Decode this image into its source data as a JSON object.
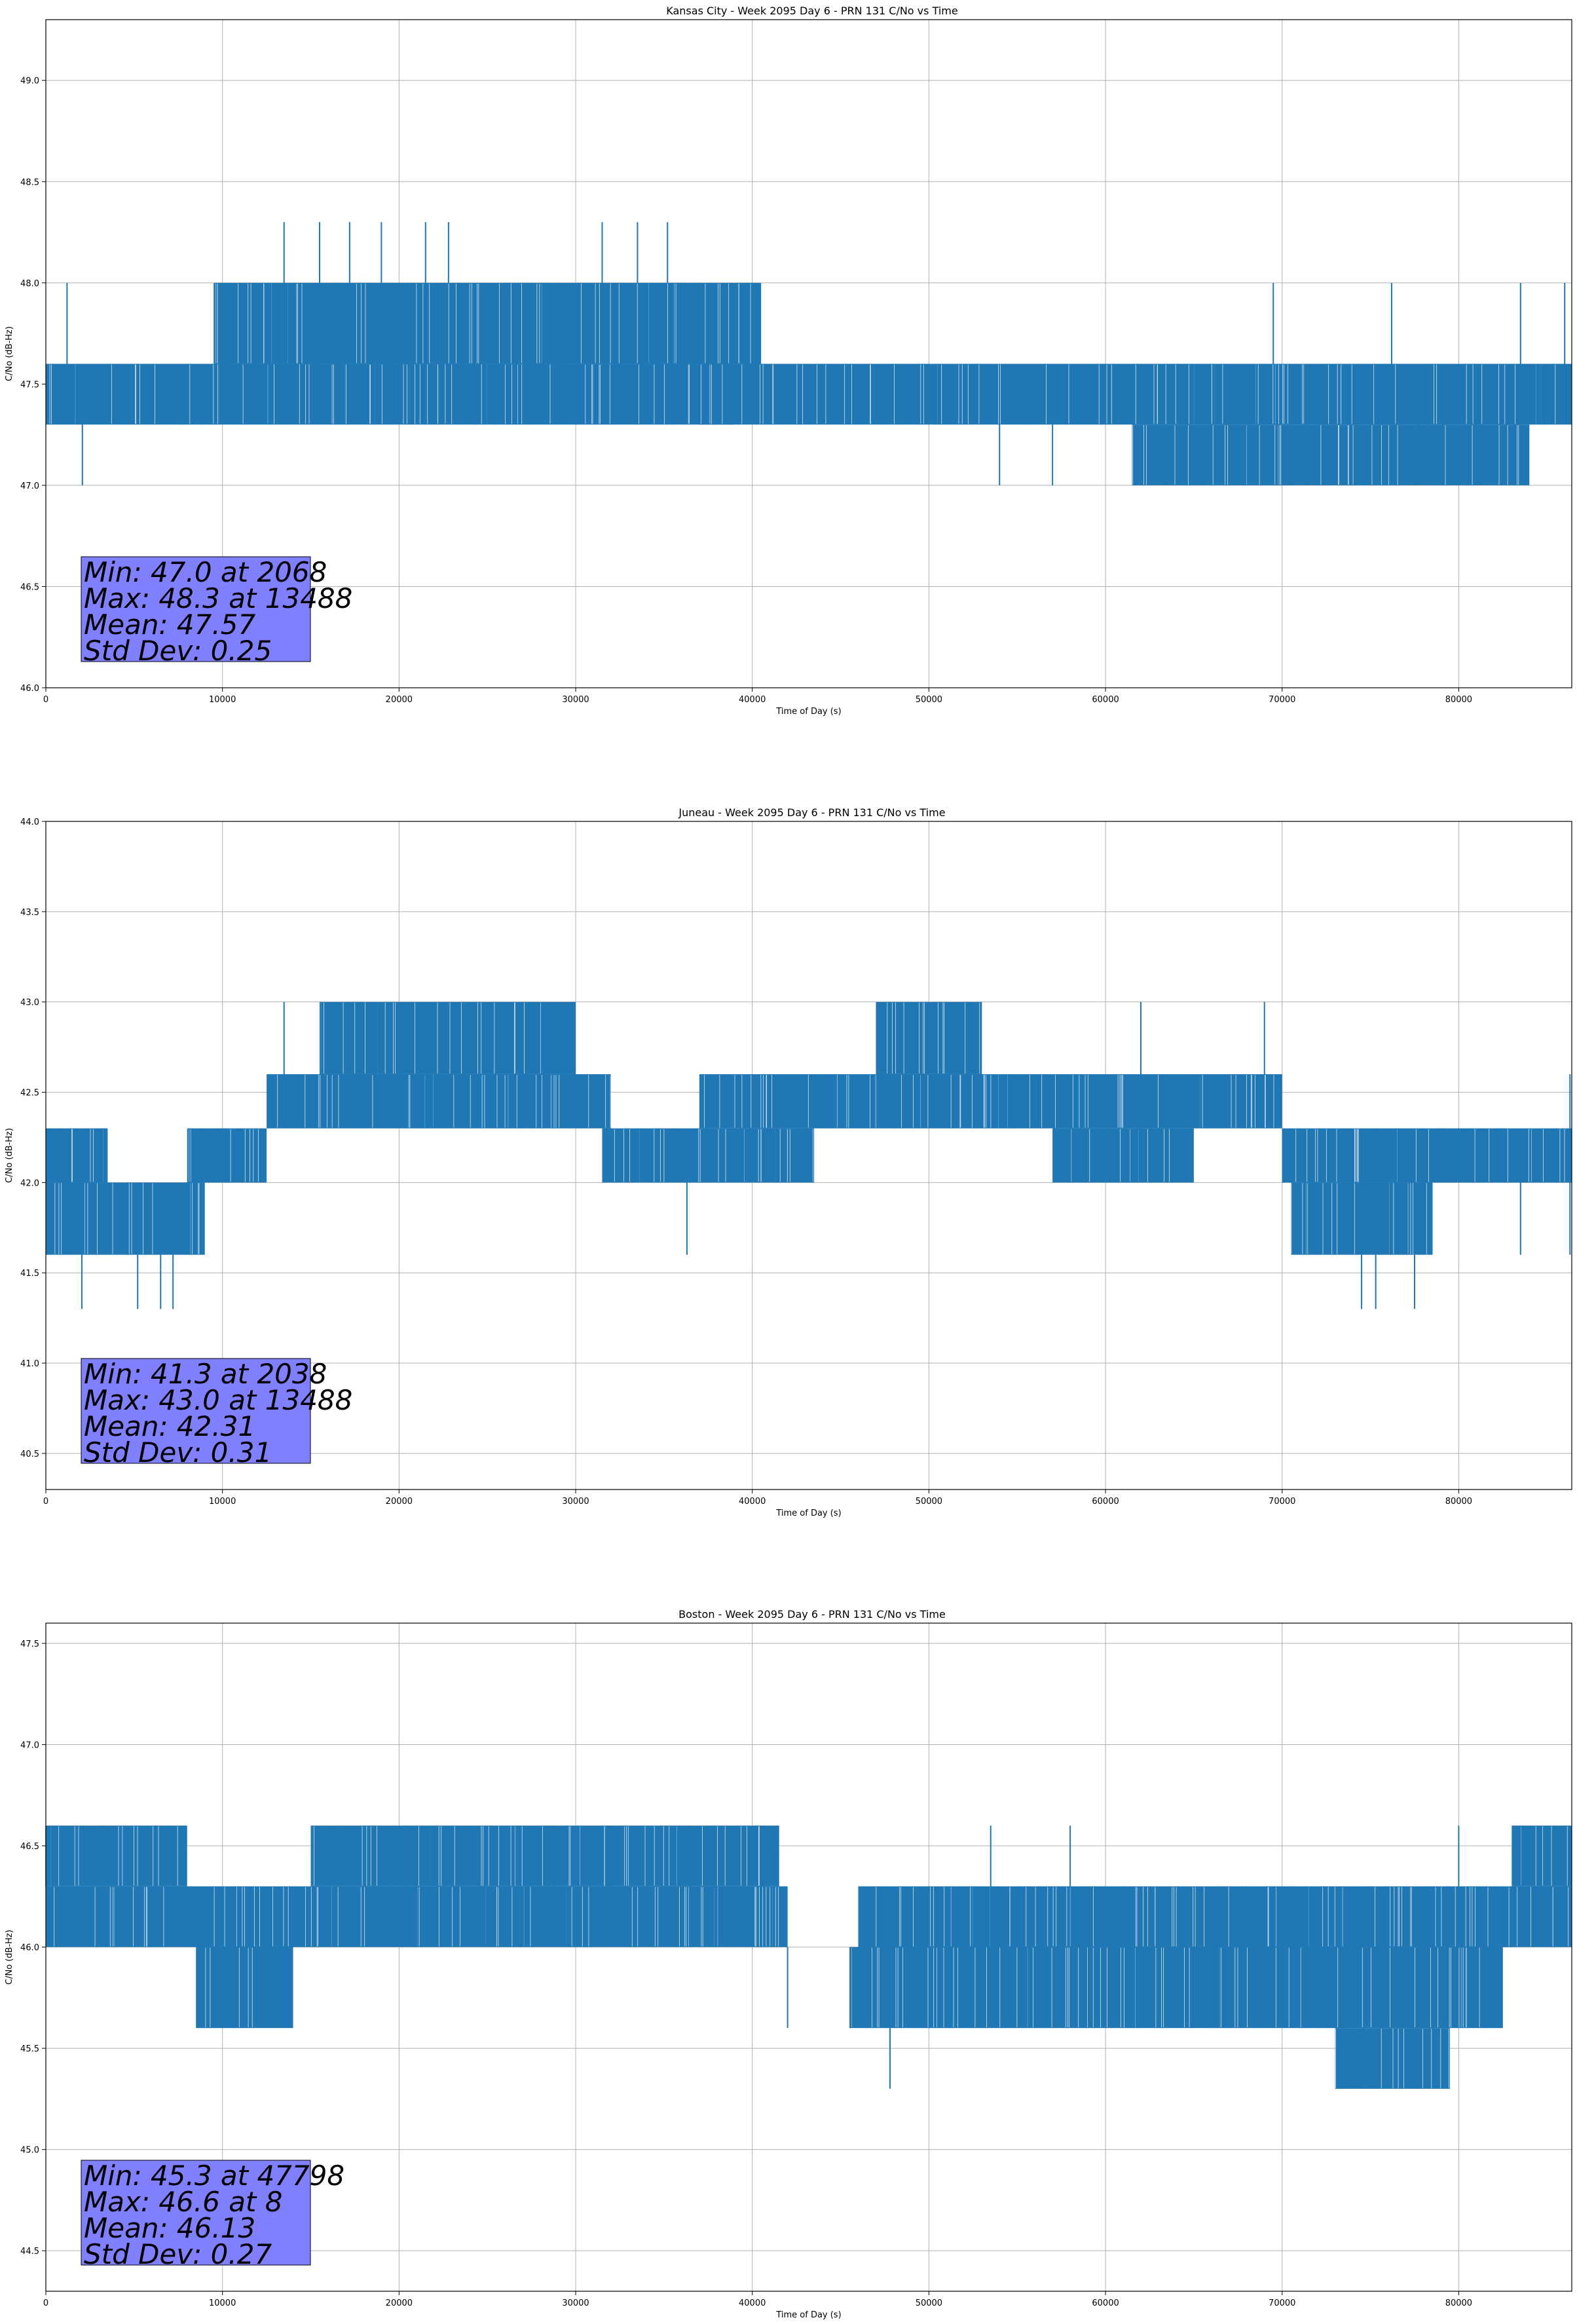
{
  "chart_data": [
    {
      "type": "line",
      "title": "Kansas City - Week 2095 Day 6 - PRN 131 C/No vs Time",
      "xlabel": "Time of Day (s)",
      "ylabel": "C/No (dB-Hz)",
      "xlim": [
        0,
        86400
      ],
      "ylim": [
        46.0,
        49.3
      ],
      "x_ticks": [
        0,
        10000,
        20000,
        30000,
        40000,
        50000,
        60000,
        70000,
        80000
      ],
      "x_tick_labels": [
        "0",
        "10000",
        "20000",
        "30000",
        "40000",
        "50000",
        "60000",
        "70000",
        "80000"
      ],
      "y_ticks": [
        46.0,
        46.5,
        47.0,
        47.5,
        48.0,
        48.5,
        49.0
      ],
      "y_tick_labels": [
        "46.0",
        "46.5",
        "47.0",
        "47.5",
        "48.0",
        "48.5",
        "49.0"
      ],
      "grid": true,
      "color": "#1f77b4",
      "series": [
        {
          "name": "C/No",
          "bands": [
            {
              "x": [
                0,
                39000
              ],
              "lo": 47.3,
              "hi": 47.6
            },
            {
              "x": [
                9500,
                40500
              ],
              "lo": 47.6,
              "hi": 48.0
            },
            {
              "x": [
                37000,
                86400
              ],
              "lo": 47.3,
              "hi": 47.6
            },
            {
              "x": [
                61500,
                84000
              ],
              "lo": 47.0,
              "hi": 47.3
            }
          ],
          "spikes": [
            {
              "x": 2068,
              "lo": 47.0,
              "hi": 47.3
            },
            {
              "x": 1200,
              "lo": 47.6,
              "hi": 48.0
            },
            {
              "x": 13488,
              "lo": 48.0,
              "hi": 48.3
            },
            {
              "x": 15500,
              "lo": 48.0,
              "hi": 48.3
            },
            {
              "x": 17200,
              "lo": 48.0,
              "hi": 48.3
            },
            {
              "x": 19000,
              "lo": 48.0,
              "hi": 48.3
            },
            {
              "x": 21500,
              "lo": 48.0,
              "hi": 48.3
            },
            {
              "x": 22800,
              "lo": 48.0,
              "hi": 48.3
            },
            {
              "x": 31500,
              "lo": 48.0,
              "hi": 48.3
            },
            {
              "x": 33500,
              "lo": 48.0,
              "hi": 48.3
            },
            {
              "x": 35200,
              "lo": 48.0,
              "hi": 48.3
            },
            {
              "x": 16900,
              "lo": 47.3,
              "hi": 47.6
            },
            {
              "x": 25500,
              "lo": 47.3,
              "hi": 47.6
            },
            {
              "x": 54000,
              "lo": 47.0,
              "hi": 47.3
            },
            {
              "x": 57000,
              "lo": 47.0,
              "hi": 47.3
            },
            {
              "x": 69500,
              "lo": 47.6,
              "hi": 48.0
            },
            {
              "x": 76200,
              "lo": 47.6,
              "hi": 48.0
            },
            {
              "x": 83500,
              "lo": 47.6,
              "hi": 48.0
            },
            {
              "x": 86000,
              "lo": 47.6,
              "hi": 48.0
            }
          ]
        }
      ],
      "stats": {
        "min": "Min: 47.0 at 2068",
        "max": "Max: 48.3 at 13488",
        "mean": "Mean: 47.57",
        "std": "Std Dev: 0.25"
      }
    },
    {
      "type": "line",
      "title": "Juneau - Week 2095 Day 6 - PRN 131 C/No vs Time",
      "xlabel": "Time of Day (s)",
      "ylabel": "C/No (dB-Hz)",
      "xlim": [
        0,
        86400
      ],
      "ylim": [
        40.3,
        44.0
      ],
      "x_ticks": [
        0,
        10000,
        20000,
        30000,
        40000,
        50000,
        60000,
        70000,
        80000
      ],
      "x_tick_labels": [
        "0",
        "10000",
        "20000",
        "30000",
        "40000",
        "50000",
        "60000",
        "70000",
        "80000"
      ],
      "y_ticks": [
        40.5,
        41.0,
        41.5,
        42.0,
        42.5,
        43.0,
        43.5,
        44.0
      ],
      "y_tick_labels": [
        "40.5",
        "41.0",
        "41.5",
        "42.0",
        "42.5",
        "43.0",
        "43.5",
        "44.0"
      ],
      "grid": true,
      "color": "#1f77b4",
      "series": [
        {
          "name": "C/No",
          "bands": [
            {
              "x": [
                0,
                9000
              ],
              "lo": 41.6,
              "hi": 42.0
            },
            {
              "x": [
                0,
                3500
              ],
              "lo": 42.0,
              "hi": 42.3
            },
            {
              "x": [
                8000,
                12500
              ],
              "lo": 42.0,
              "hi": 42.3
            },
            {
              "x": [
                12500,
                32000
              ],
              "lo": 42.3,
              "hi": 42.6
            },
            {
              "x": [
                15500,
                30000
              ],
              "lo": 42.6,
              "hi": 43.0
            },
            {
              "x": [
                31500,
                43500
              ],
              "lo": 42.0,
              "hi": 42.3
            },
            {
              "x": [
                37000,
                70000
              ],
              "lo": 42.3,
              "hi": 42.6
            },
            {
              "x": [
                47000,
                53000
              ],
              "lo": 42.6,
              "hi": 43.0
            },
            {
              "x": [
                57000,
                65000
              ],
              "lo": 42.0,
              "hi": 42.3
            },
            {
              "x": [
                70000,
                86400
              ],
              "lo": 42.0,
              "hi": 42.3
            },
            {
              "x": [
                70500,
                78500
              ],
              "lo": 41.6,
              "hi": 42.0
            }
          ],
          "spikes": [
            {
              "x": 2038,
              "lo": 41.3,
              "hi": 41.6
            },
            {
              "x": 5200,
              "lo": 41.3,
              "hi": 41.6
            },
            {
              "x": 6500,
              "lo": 41.3,
              "hi": 41.6
            },
            {
              "x": 7200,
              "lo": 41.3,
              "hi": 41.6
            },
            {
              "x": 13488,
              "lo": 42.6,
              "hi": 43.0
            },
            {
              "x": 36300,
              "lo": 41.6,
              "hi": 42.0
            },
            {
              "x": 74500,
              "lo": 41.3,
              "hi": 41.6
            },
            {
              "x": 75300,
              "lo": 41.3,
              "hi": 41.6
            },
            {
              "x": 77500,
              "lo": 41.3,
              "hi": 41.6
            },
            {
              "x": 83500,
              "lo": 41.6,
              "hi": 42.0
            },
            {
              "x": 86300,
              "lo": 41.6,
              "hi": 42.0
            },
            {
              "x": 69000,
              "lo": 42.6,
              "hi": 43.0
            },
            {
              "x": 62000,
              "lo": 42.6,
              "hi": 43.0
            },
            {
              "x": 86300,
              "lo": 42.3,
              "hi": 42.6
            }
          ]
        }
      ],
      "stats": {
        "min": "Min: 41.3 at 2038",
        "max": "Max: 43.0 at 13488",
        "mean": "Mean: 42.31",
        "std": "Std Dev: 0.31"
      }
    },
    {
      "type": "line",
      "title": "Boston - Week 2095 Day 6 - PRN 131 C/No vs Time",
      "xlabel": "Time of Day (s)",
      "ylabel": "C/No (dB-Hz)",
      "xlim": [
        0,
        86400
      ],
      "ylim": [
        44.3,
        47.6
      ],
      "x_ticks": [
        0,
        10000,
        20000,
        30000,
        40000,
        50000,
        60000,
        70000,
        80000
      ],
      "x_tick_labels": [
        "0",
        "10000",
        "20000",
        "30000",
        "40000",
        "50000",
        "60000",
        "70000",
        "80000"
      ],
      "y_ticks": [
        44.5,
        45.0,
        45.5,
        46.0,
        46.5,
        47.0,
        47.5
      ],
      "y_tick_labels": [
        "44.5",
        "45.0",
        "45.5",
        "46.0",
        "46.5",
        "47.0",
        "47.5"
      ],
      "grid": true,
      "color": "#1f77b4",
      "series": [
        {
          "name": "C/No",
          "bands": [
            {
              "x": [
                0,
                8000
              ],
              "lo": 46.3,
              "hi": 46.6
            },
            {
              "x": [
                0,
                42000
              ],
              "lo": 46.0,
              "hi": 46.3
            },
            {
              "x": [
                15000,
                41500
              ],
              "lo": 46.3,
              "hi": 46.6
            },
            {
              "x": [
                8500,
                14000
              ],
              "lo": 45.6,
              "hi": 46.0
            },
            {
              "x": [
                46000,
                86400
              ],
              "lo": 46.0,
              "hi": 46.3
            },
            {
              "x": [
                45500,
                82500
              ],
              "lo": 45.6,
              "hi": 46.0
            },
            {
              "x": [
                73000,
                79500
              ],
              "lo": 45.3,
              "hi": 45.6
            },
            {
              "x": [
                83000,
                86400
              ],
              "lo": 46.3,
              "hi": 46.6
            }
          ],
          "spikes": [
            {
              "x": 8,
              "lo": 46.3,
              "hi": 46.6
            },
            {
              "x": 47798,
              "lo": 45.3,
              "hi": 45.6
            },
            {
              "x": 42000,
              "lo": 45.6,
              "hi": 46.0
            },
            {
              "x": 53500,
              "lo": 46.3,
              "hi": 46.6
            },
            {
              "x": 58000,
              "lo": 46.3,
              "hi": 46.6
            },
            {
              "x": 80000,
              "lo": 46.3,
              "hi": 46.6
            }
          ]
        }
      ],
      "stats": {
        "min": "Min: 45.3 at 47798",
        "max": "Max: 46.6 at 8",
        "mean": "Mean: 46.13",
        "std": "Std Dev: 0.27"
      }
    }
  ],
  "colors": {
    "line": "#1f77b4",
    "stats_box": "#8080ff",
    "grid": "#b0b0b0"
  }
}
